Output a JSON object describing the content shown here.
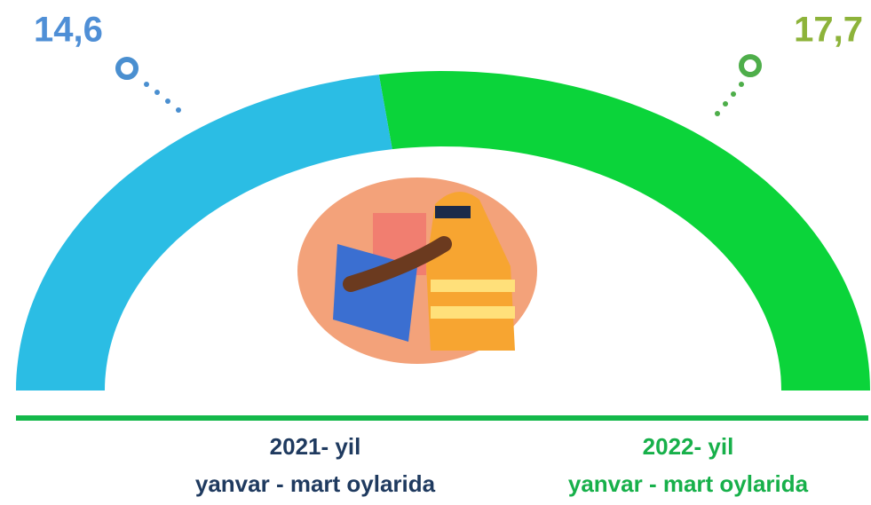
{
  "chart_data": {
    "type": "semi-donut",
    "categories": [
      "2021- yil",
      "2022- yil"
    ],
    "category_notes": [
      "yanvar - mart oylarida",
      "yanvar - mart oylarida"
    ],
    "values": [
      14.6,
      17.7
    ],
    "value_labels": [
      "14,6",
      "17,7"
    ],
    "colors": [
      "#2bbde4",
      "#0bd43a"
    ],
    "label_colors": [
      "#4f8fd6",
      "#8db33a"
    ],
    "category_label_colors": [
      "#1f3a5f",
      "#17b04a"
    ]
  }
}
